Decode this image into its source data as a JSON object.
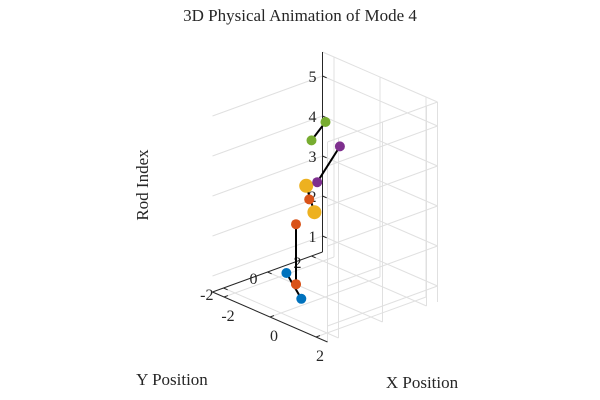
{
  "chart_data": {
    "type": "line3d",
    "title": "3D Physical Animation of Mode 4",
    "xlabel": "X Position",
    "ylabel": "Y Position",
    "zlabel": "Rod Index",
    "xlim": [
      -2.5,
      2.5
    ],
    "ylim": [
      -2.5,
      2.5
    ],
    "zlim": [
      0.6,
      5.6
    ],
    "xticks": [
      -2,
      0,
      2
    ],
    "yticks": [
      -2,
      0,
      2
    ],
    "zticks": [
      1,
      2,
      3,
      4,
      5
    ],
    "xtick_labels": [
      "-2",
      "0",
      "2"
    ],
    "ytick_labels": [
      "-2",
      "0",
      "2"
    ],
    "ztick_labels": [
      "1",
      "2",
      "3",
      "4",
      "5"
    ],
    "grid": true,
    "rods": [
      {
        "index": 1,
        "color": "#0072BD",
        "ends": [
          {
            "x": -1.2,
            "y": -0.5,
            "z": 1
          },
          {
            "x": 0.5,
            "y": -1.6,
            "z": 1
          }
        ],
        "mid": {
          "x": -0.4,
          "y": -0.9,
          "z": 1
        }
      },
      {
        "index": 2,
        "color": "#D95319",
        "ends": [
          {
            "x": -0.4,
            "y": -0.9,
            "z": 1
          },
          {
            "x": -0.4,
            "y": -0.9,
            "z": 2.5
          }
        ]
      },
      {
        "index": 3,
        "color": "#EDB120",
        "ends": [
          {
            "x": -1.2,
            "y": 0.4,
            "z": 3
          },
          {
            "x": 0.4,
            "y": -0.9,
            "z": 3
          }
        ],
        "mid": {
          "x": -0.4,
          "y": -0.3,
          "z": 3
        }
      },
      {
        "index": 4,
        "color": "#7E2F8E",
        "ends": [
          {
            "x": -0.5,
            "y": 1.2,
            "z": 4
          },
          {
            "x": 1.0,
            "y": -1.4,
            "z": 4
          }
        ]
      },
      {
        "index": 5,
        "color": "#77AC30",
        "ends": [
          {
            "x": -0.3,
            "y": -0.3,
            "z": 4.5
          },
          {
            "x": 0.5,
            "y": -0.5,
            "z": 5.2
          }
        ]
      }
    ],
    "colors": {
      "rod": "#000000",
      "grid": "#e0e0e0",
      "axis": "#262626"
    }
  }
}
